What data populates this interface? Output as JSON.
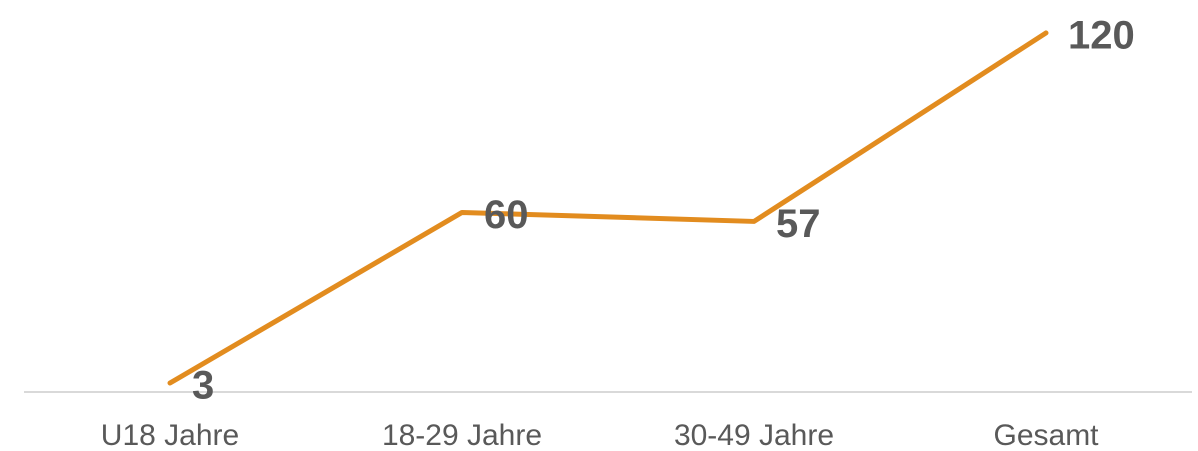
{
  "chart_data": {
    "type": "line",
    "categories": [
      "U18 Jahre",
      "18-29 Jahre",
      "30-49 Jahre",
      "Gesamt"
    ],
    "series": [
      {
        "color": "#e28c1f",
        "values": [
          3,
          60,
          57,
          120
        ]
      }
    ],
    "ylim": [
      0,
      130
    ]
  }
}
